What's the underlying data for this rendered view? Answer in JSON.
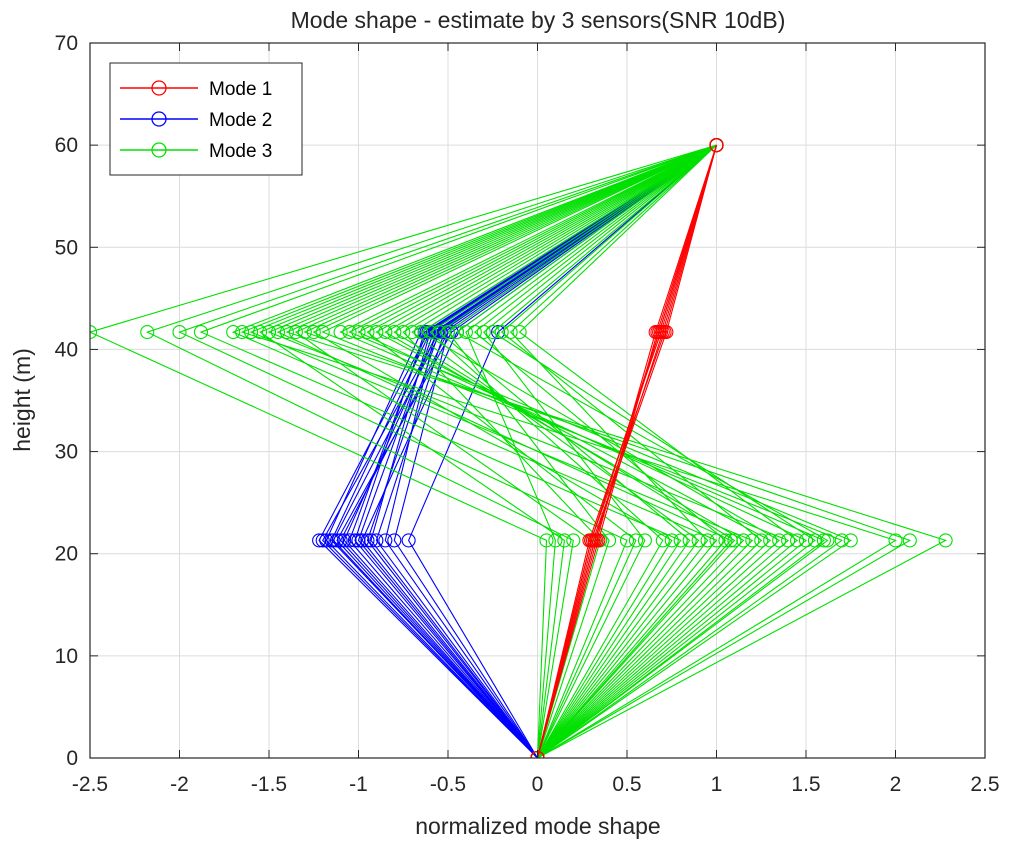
{
  "chart_data": {
    "type": "line",
    "title": "Mode shape - estimate by 3 sensors(SNR 10dB)",
    "xlabel": "normalized mode shape",
    "ylabel": "height (m)",
    "xlim": [
      -2.5,
      2.5
    ],
    "ylim": [
      0,
      70
    ],
    "xticks": [
      -2.5,
      -2,
      -1.5,
      -1,
      -0.5,
      0,
      0.5,
      1,
      1.5,
      2,
      2.5
    ],
    "xtick_labels": [
      "-2.5",
      "-2",
      "-1.5",
      "-1",
      "-0.5",
      "0",
      "0.5",
      "1",
      "1.5",
      "2",
      "2.5"
    ],
    "yticks": [
      0,
      10,
      20,
      30,
      40,
      50,
      60,
      70
    ],
    "ytick_labels": [
      "0",
      "10",
      "20",
      "30",
      "40",
      "50",
      "60",
      "70"
    ],
    "grid": true,
    "legend_position": "top-left",
    "marker": "circle",
    "heights": [
      0,
      21.3,
      41.7,
      60
    ],
    "series": [
      {
        "name": "Mode 1",
        "color": "#ff0000",
        "trials": [
          [
            0,
            0.3,
            0.68,
            1
          ],
          [
            0,
            0.32,
            0.7,
            1
          ],
          [
            0,
            0.33,
            0.66,
            1
          ],
          [
            0,
            0.31,
            0.72,
            1
          ],
          [
            0,
            0.29,
            0.69,
            1
          ],
          [
            0,
            0.34,
            0.67,
            1
          ],
          [
            0,
            0.3,
            0.71,
            1
          ],
          [
            0,
            0.32,
            0.68,
            1
          ]
        ]
      },
      {
        "name": "Mode 2",
        "color": "#0000ff",
        "trials": [
          [
            0,
            -1.2,
            -0.55,
            1
          ],
          [
            0,
            -1.15,
            -0.6,
            1
          ],
          [
            0,
            -1.1,
            -0.5,
            1
          ],
          [
            0,
            -1.05,
            -0.62,
            1
          ],
          [
            0,
            -1.0,
            -0.58,
            1
          ],
          [
            0,
            -0.95,
            -0.55,
            1
          ],
          [
            0,
            -0.9,
            -0.52,
            1
          ],
          [
            0,
            -1.18,
            -0.65,
            1
          ],
          [
            0,
            -1.12,
            -0.48,
            1
          ],
          [
            0,
            -1.08,
            -0.56,
            1
          ],
          [
            0,
            -1.02,
            -0.63,
            1
          ],
          [
            0,
            -0.98,
            -0.45,
            1
          ],
          [
            0,
            -0.93,
            -0.6,
            1
          ],
          [
            0,
            -0.85,
            -0.57,
            1
          ],
          [
            0,
            -0.8,
            -0.5,
            1
          ],
          [
            0,
            -0.72,
            -0.22,
            1
          ],
          [
            0,
            -1.22,
            -0.61,
            1
          ],
          [
            0,
            -1.14,
            -0.54,
            1
          ]
        ]
      },
      {
        "name": "Mode 3",
        "color": "#00e000",
        "trials": [
          [
            0,
            0.05,
            -2.5,
            1
          ],
          [
            0,
            0.2,
            -2.18,
            1
          ],
          [
            0,
            0.5,
            -2.0,
            1
          ],
          [
            0,
            0.8,
            -1.88,
            1
          ],
          [
            0,
            1.0,
            -1.7,
            1
          ],
          [
            0,
            1.2,
            -1.6,
            1
          ],
          [
            0,
            1.4,
            -1.5,
            1
          ],
          [
            0,
            2.28,
            -1.4,
            1
          ],
          [
            0,
            2.08,
            -1.3,
            1
          ],
          [
            0,
            1.7,
            -1.2,
            1
          ],
          [
            0,
            1.6,
            -1.1,
            1
          ],
          [
            0,
            1.5,
            -1.0,
            1
          ],
          [
            0,
            1.3,
            -0.9,
            1
          ],
          [
            0,
            1.1,
            -0.8,
            1
          ],
          [
            0,
            0.9,
            -0.7,
            1
          ],
          [
            0,
            0.7,
            -0.6,
            1
          ],
          [
            0,
            0.4,
            -0.5,
            1
          ],
          [
            0,
            0.1,
            -0.4,
            1
          ],
          [
            0,
            0.6,
            -0.3,
            1
          ],
          [
            0,
            1.25,
            -0.2,
            1
          ],
          [
            0,
            1.45,
            -0.1,
            1
          ],
          [
            0,
            2.0,
            -1.65,
            1
          ],
          [
            0,
            1.05,
            -0.35,
            1
          ],
          [
            0,
            0.3,
            -1.35,
            1
          ],
          [
            0,
            0.85,
            -0.55,
            1
          ],
          [
            0,
            1.15,
            -0.85,
            1
          ],
          [
            0,
            1.55,
            -0.25,
            1
          ],
          [
            0,
            0.15,
            -1.55,
            1
          ],
          [
            0,
            0.55,
            -0.95,
            1
          ],
          [
            0,
            1.35,
            -0.65,
            1
          ],
          [
            0,
            0.75,
            -1.25,
            1
          ],
          [
            0,
            1.62,
            -0.45,
            1
          ],
          [
            0,
            0.95,
            -0.15,
            1
          ],
          [
            0,
            0.35,
            -0.75,
            1
          ],
          [
            0,
            1.08,
            -1.45,
            1
          ],
          [
            0,
            1.75,
            -1.05,
            1
          ]
        ]
      }
    ]
  }
}
